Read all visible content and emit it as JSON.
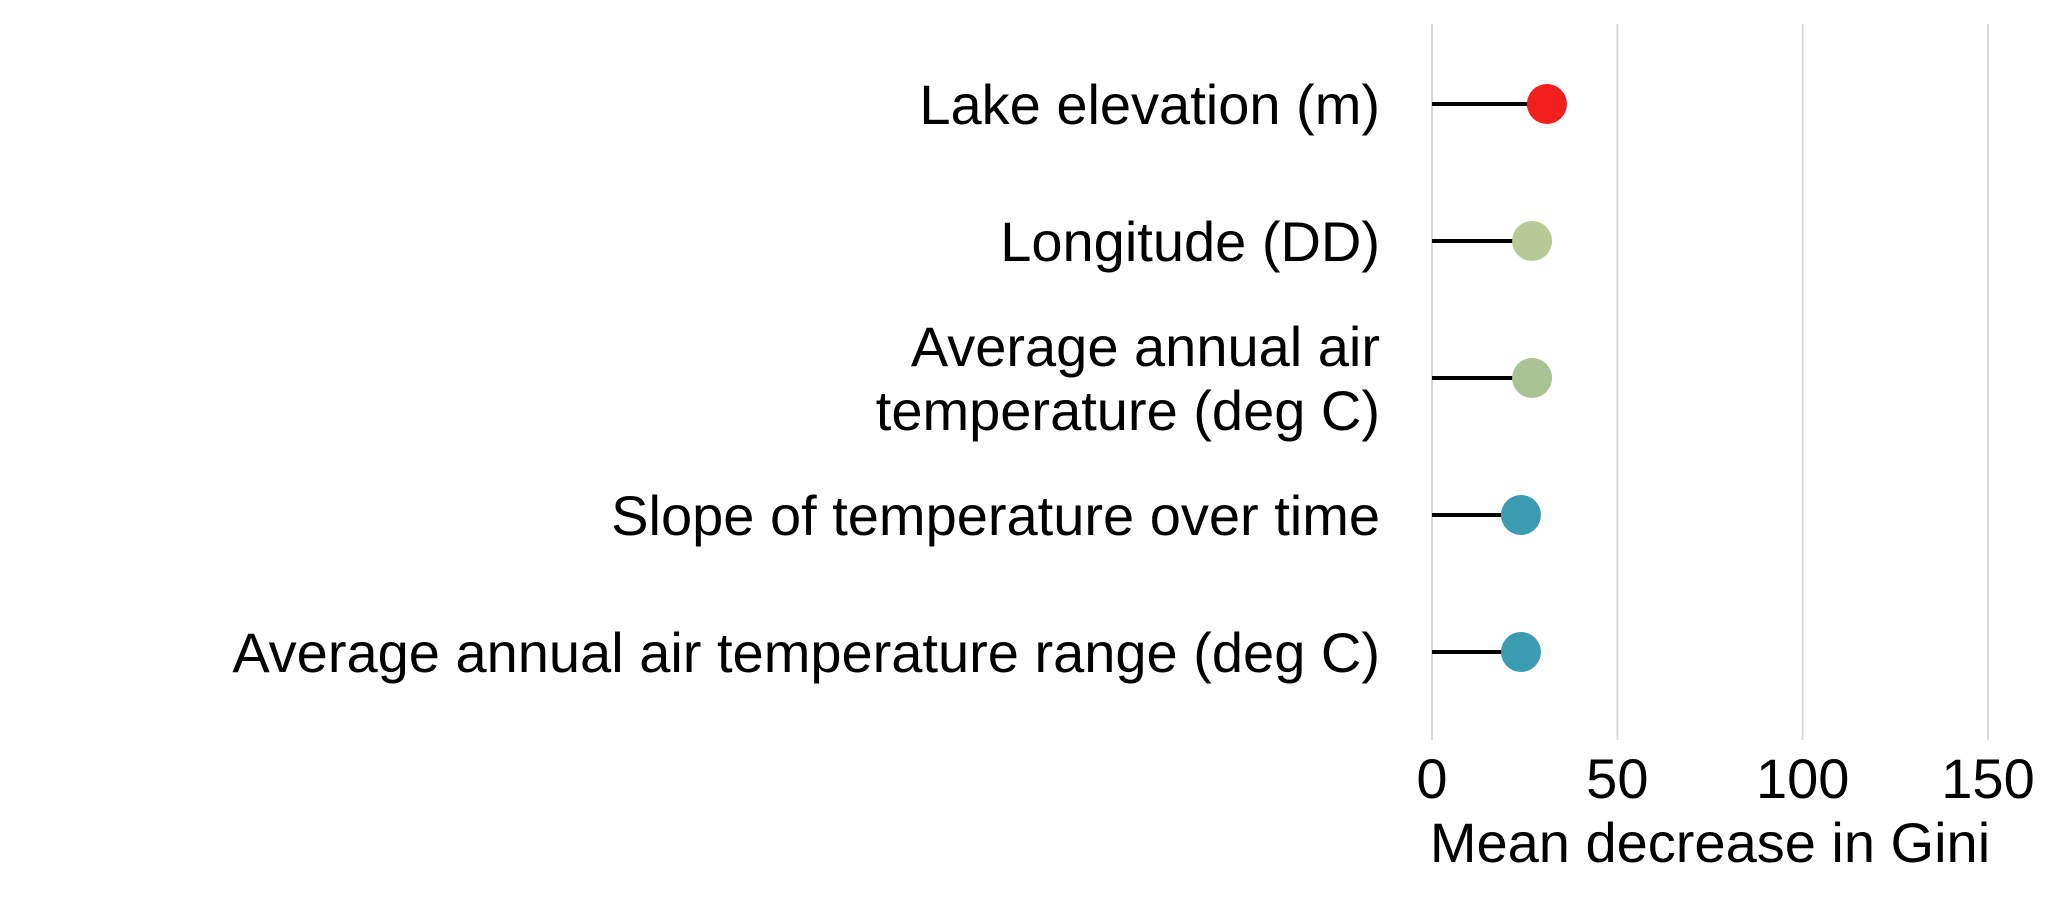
{
  "chart_data": {
    "type": "lollipop",
    "orientation": "horizontal",
    "categories": [
      [
        "Lake elevation (m)"
      ],
      [
        "Longitude (DD)"
      ],
      [
        "Average annual air",
        "temperature (deg C)"
      ],
      [
        "Slope of temperature over time"
      ],
      [
        "Average annual air temperature range (deg C)"
      ]
    ],
    "values": [
      31,
      27,
      27,
      24,
      24
    ],
    "colors": [
      "#f21f1f",
      "#b7c995",
      "#a9c395",
      "#3a9bb1",
      "#3a9bb1"
    ],
    "xlim": [
      0,
      150
    ],
    "xticks": [
      0,
      50,
      100,
      150
    ],
    "xtick_labels": [
      "0",
      "50",
      "100",
      "150"
    ],
    "xlabel": "Mean decrease in Gini",
    "ylabel": "",
    "title": "",
    "grid": "vertical",
    "legend": "none"
  }
}
